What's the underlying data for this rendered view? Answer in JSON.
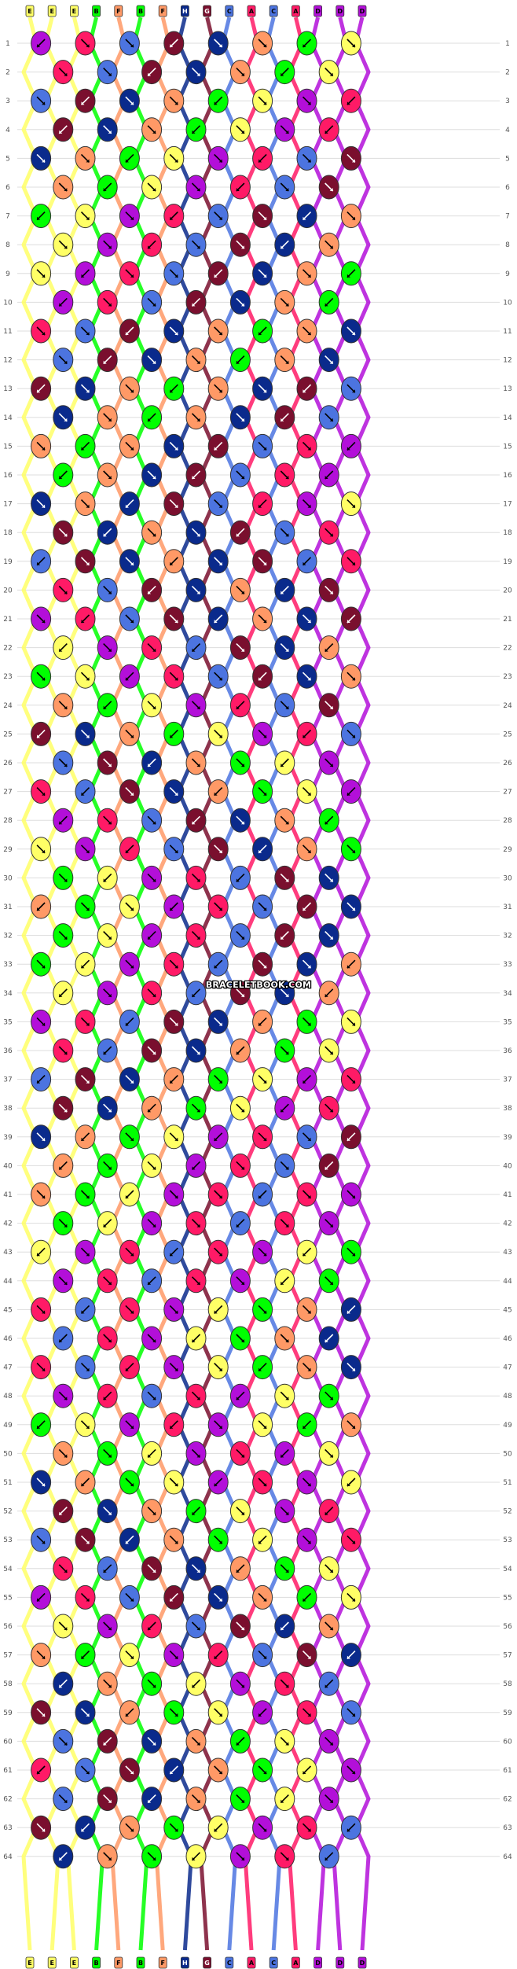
{
  "watermark": "BRACELETBOOK.COM",
  "strand_labels": [
    "E",
    "E",
    "E",
    "B",
    "F",
    "B",
    "F",
    "H",
    "G",
    "C",
    "A",
    "C",
    "A",
    "D",
    "D",
    "D"
  ],
  "row_count": 64,
  "colors": {
    "A": "#ff1a66",
    "B": "#00ff00",
    "C": "#4c74e0",
    "D": "#b30fd9",
    "E": "#ffff66",
    "F": "#ff9966",
    "G": "#7a0f2e",
    "H": "#0a2a8c"
  },
  "knot_text_color": "#000000",
  "pattern_image_name": "friendship-bracelet-knot-pattern"
}
